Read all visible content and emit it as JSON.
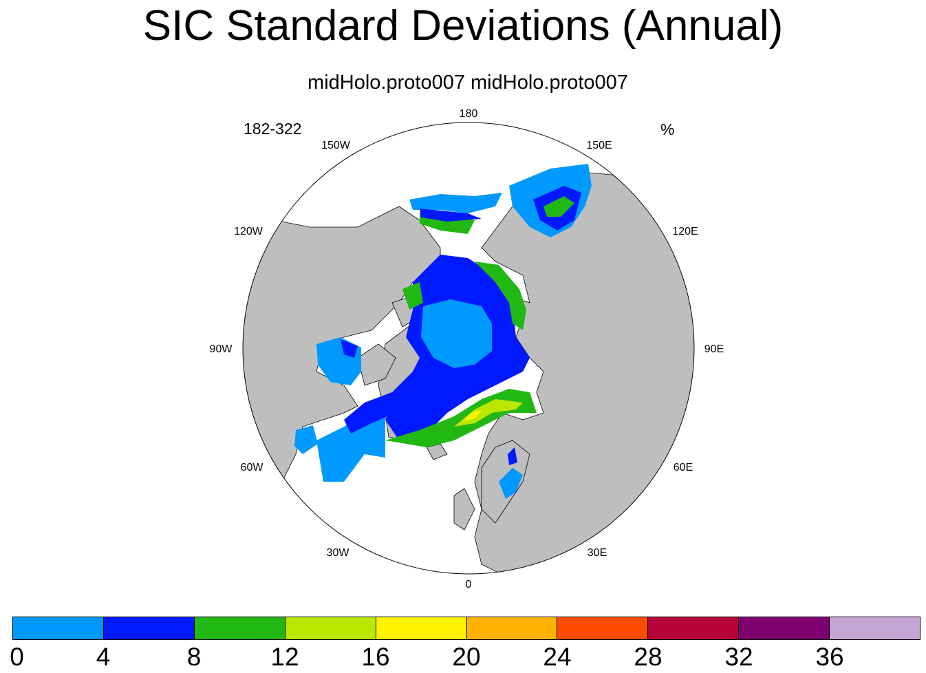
{
  "title": "SIC Standard Deviations (Annual)",
  "subtitle": "midHolo.proto007  midHolo.proto007",
  "map": {
    "left_label": "182-322",
    "right_label": "%",
    "longitude_labels": [
      "180",
      "150E",
      "120E",
      "90E",
      "60E",
      "30E",
      "0",
      "30W",
      "60W",
      "90W",
      "120W",
      "150W"
    ],
    "land_color": "#bebebe",
    "ocean_color": "#ffffff"
  },
  "colorbar": {
    "colors": [
      "#0099ff",
      "#0019ff",
      "#22b814",
      "#bbe600",
      "#fff200",
      "#ffb300",
      "#ff4c00",
      "#b8003a",
      "#7d006e",
      "#c4a6d6"
    ],
    "ticks": [
      "0",
      "4",
      "8",
      "12",
      "16",
      "20",
      "24",
      "28",
      "32",
      "36"
    ]
  }
}
